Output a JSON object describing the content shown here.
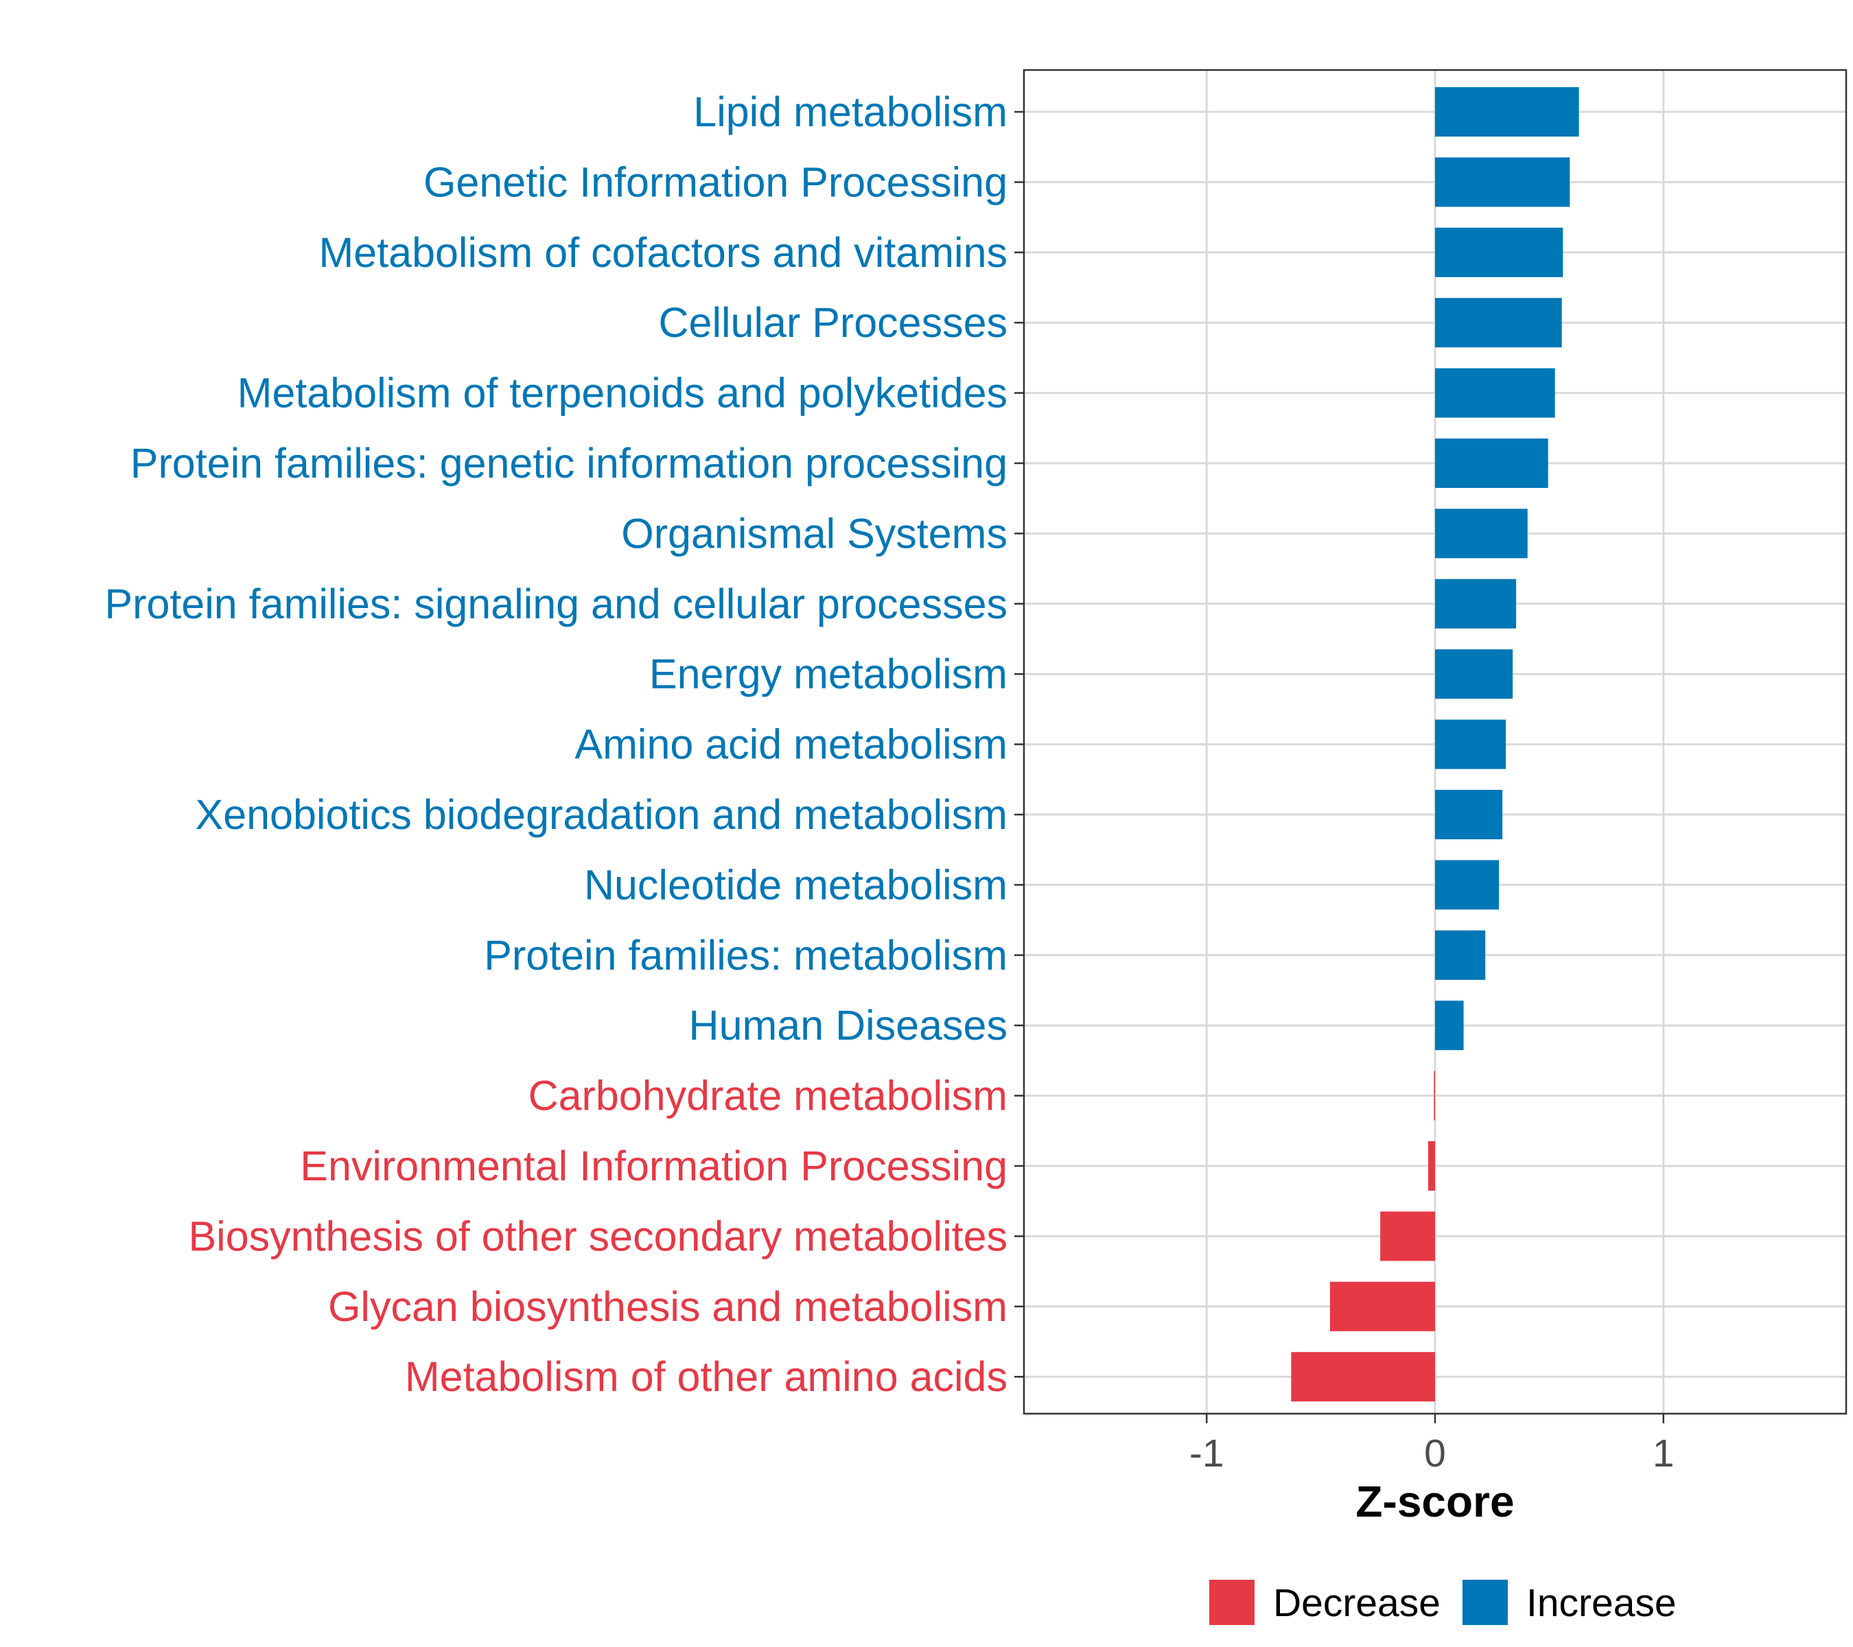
{
  "chart_data": {
    "type": "bar",
    "orientation": "horizontal",
    "xlabel": "Z-score",
    "xlim": [
      -1.8,
      1.8
    ],
    "xticks": [
      -1,
      0,
      1
    ],
    "xtick_labels": [
      "-1",
      "0",
      "1"
    ],
    "grid": true,
    "legend_position": "bottom",
    "colors": {
      "Decrease": "#e63946",
      "Increase": "#0077b6"
    },
    "categories": [
      "Lipid metabolism",
      "Genetic Information Processing",
      "Metabolism of cofactors and vitamins",
      "Cellular Processes",
      "Metabolism of terpenoids and polyketides",
      "Protein families: genetic information processing",
      "Organismal Systems",
      "Protein families: signaling and cellular processes",
      "Energy metabolism",
      "Amino acid metabolism",
      "Xenobiotics biodegradation and metabolism",
      "Nucleotide metabolism",
      "Protein families: metabolism",
      "Human Diseases",
      "Carbohydrate metabolism",
      "Environmental Information Processing",
      "Biosynthesis of other secondary metabolites",
      "Glycan biosynthesis and metabolism",
      "Metabolism of other amino acids"
    ],
    "values": [
      0.63,
      0.59,
      0.56,
      0.555,
      0.525,
      0.495,
      0.405,
      0.355,
      0.34,
      0.31,
      0.295,
      0.28,
      0.22,
      0.125,
      -0.005,
      -0.03,
      -0.24,
      -0.46,
      -0.63
    ],
    "groups": [
      "Increase",
      "Increase",
      "Increase",
      "Increase",
      "Increase",
      "Increase",
      "Increase",
      "Increase",
      "Increase",
      "Increase",
      "Increase",
      "Increase",
      "Increase",
      "Increase",
      "Decrease",
      "Decrease",
      "Decrease",
      "Decrease",
      "Decrease"
    ],
    "legend": [
      "Decrease",
      "Increase"
    ]
  }
}
